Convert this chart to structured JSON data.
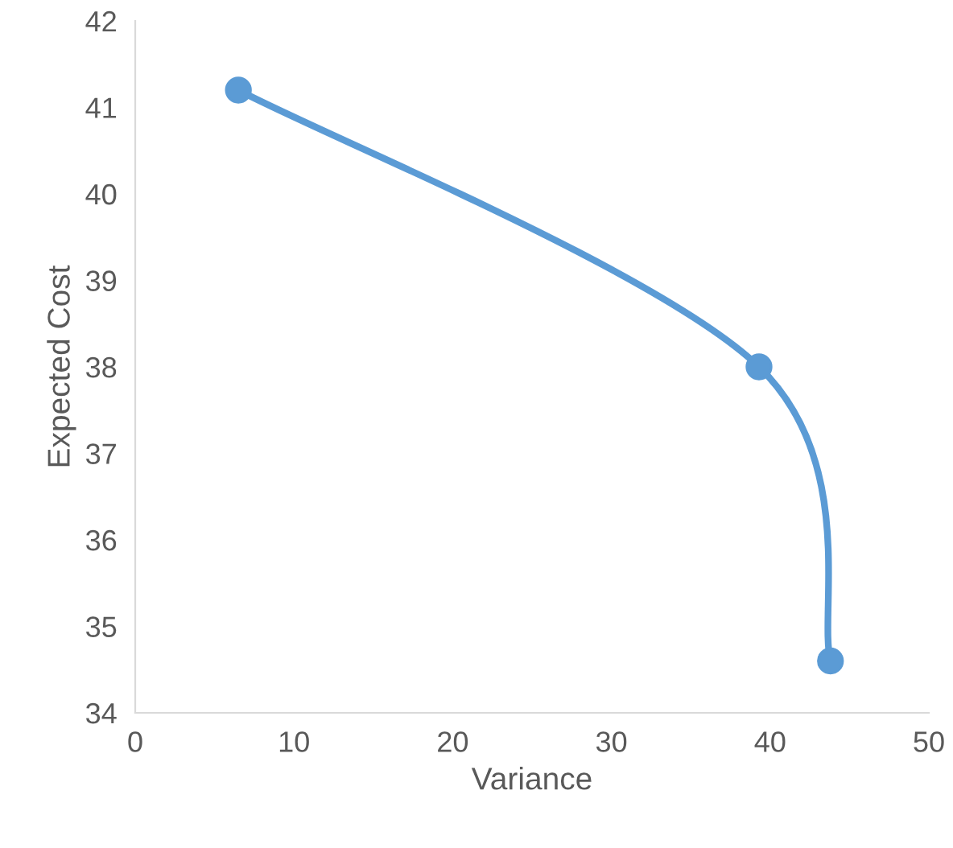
{
  "chart_data": {
    "type": "line",
    "xlabel": "Variance",
    "ylabel": "Expected Cost",
    "x": [
      6.5,
      39.3,
      43.8
    ],
    "series": [
      {
        "color": "#5b9bd5",
        "values": [
          41.2,
          38.0,
          34.6
        ]
      }
    ],
    "xlim": [
      0,
      50
    ],
    "xticks": [
      0,
      10,
      20,
      30,
      40,
      50
    ],
    "ylim": [
      34,
      42
    ],
    "yticks": [
      34,
      35,
      36,
      37,
      38,
      39,
      40,
      41,
      42
    ],
    "grid": false,
    "marker": "circle",
    "line_style": "solid"
  }
}
